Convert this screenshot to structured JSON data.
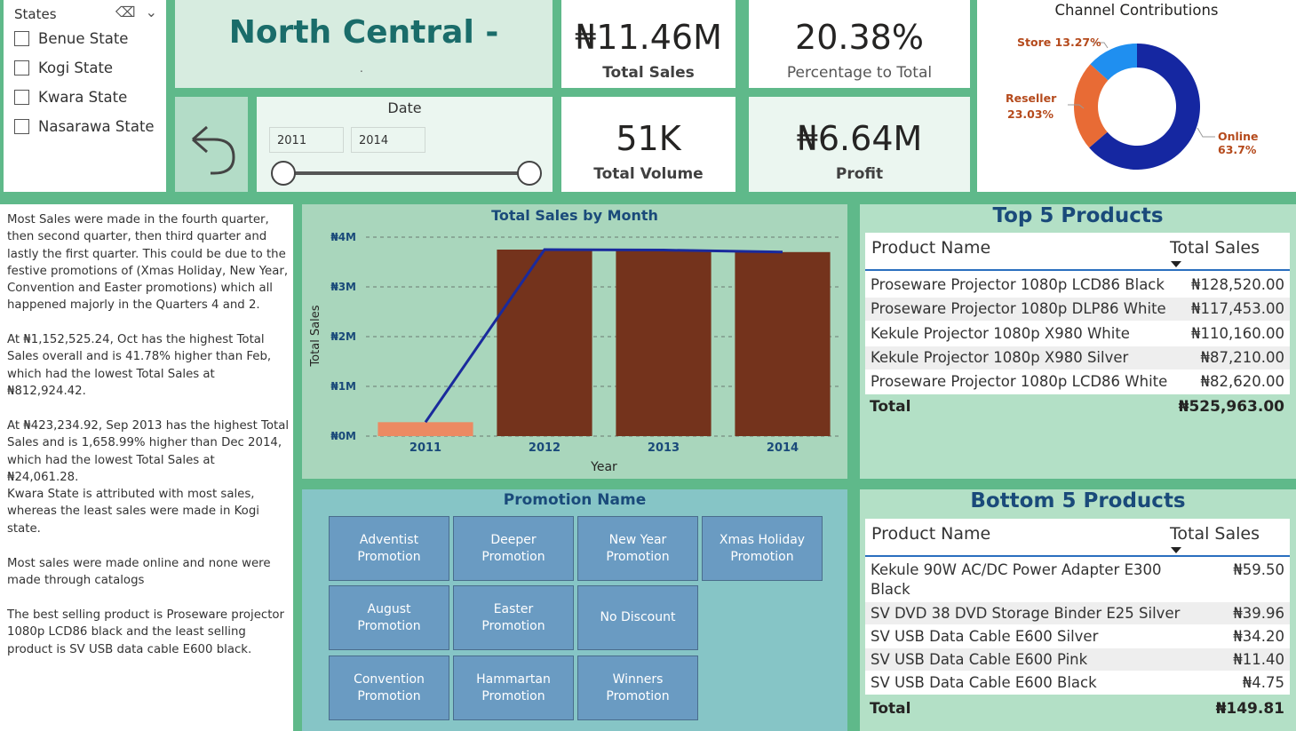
{
  "states_slicer": {
    "header": "States",
    "options": [
      "Benue State",
      "Kogi State",
      "Kwara State",
      "Nasarawa State"
    ]
  },
  "title": {
    "text": "North Central -",
    "sub": "."
  },
  "kpis": {
    "total_sales": {
      "value": "₦11.46M",
      "label": "Total Sales"
    },
    "percentage": {
      "value": "20.38%",
      "label": "Percentage to Total"
    },
    "total_volume": {
      "value": "51K",
      "label": "Total Volume"
    },
    "profit": {
      "value": "₦6.64M",
      "label": "Profit"
    }
  },
  "date_slicer": {
    "label": "Date",
    "start": "2011",
    "end": "2014",
    "range_start": 0.0,
    "range_end": 1.0
  },
  "channel_chart": {
    "title": "Channel Contributions",
    "store_label": "Store 13.27%",
    "reseller_label_1": "Reseller",
    "reseller_label_2": "23.03%",
    "online_label": "Online 63.7%"
  },
  "narrative": [
    "Most Sales were made in the fourth quarter, then second quarter, then third quarter and lastly the first quarter. This could be due to the festive promotions of (Xmas Holiday, New Year, Convention and Easter promotions) which all happened majorly in the Quarters 4 and 2.",
    "At ₦1,152,525.24, Oct has the highest Total Sales overall and is 41.78% higher than Feb, which had the lowest Total Sales at ₦812,924.42.",
    "At ₦423,234.92, Sep 2013 has the highest Total Sales and is 1,658.99% higher than Dec 2014, which had the lowest Total Sales at ₦24,061.28.",
    "Kwara State is attributed with most sales, whereas the least sales were made in Kogi state.",
    "Most sales were made online and none were made through catalogs",
    "The best selling product is Proseware projector 1080p LCD86 black and the least selling product is SV USB data cable E600 black."
  ],
  "chart_data": [
    {
      "type": "bar",
      "title": "Total Sales by Month",
      "xlabel": "Year",
      "ylabel": "Total Sales",
      "categories": [
        "2011",
        "2012",
        "2013",
        "2014"
      ],
      "values": [
        280000,
        3750000,
        3740000,
        3700000
      ],
      "line_values": [
        280000,
        3750000,
        3740000,
        3700000
      ],
      "ylim": [
        0,
        4000000
      ],
      "yticks": [
        "₦0M",
        "₦1M",
        "₦2M",
        "₦3M",
        "₦4M"
      ],
      "bar_colors": [
        "#ec8a62",
        "#74331c",
        "#74331c",
        "#74331c"
      ],
      "line_color": "#1a2a9c",
      "grid": true
    },
    {
      "type": "pie",
      "title": "Channel Contributions",
      "categories": [
        "Online",
        "Reseller",
        "Store"
      ],
      "values": [
        63.7,
        23.03,
        13.27
      ],
      "colors": [
        "#1527a1",
        "#e86b35",
        "#1f8ff0"
      ]
    }
  ],
  "promotions": {
    "title": "Promotion Name",
    "buttons": [
      "Adventist Promotion",
      "Deeper Promotion",
      "New Year Promotion",
      "Xmas Holiday Promotion",
      "August Promotion",
      "Easter Promotion",
      "No Discount",
      "Convention Promotion",
      "Hammartan Promotion",
      "Winners Promotion"
    ]
  },
  "top_products": {
    "title": "Top 5 Products",
    "col_name": "Product Name",
    "col_sales": "Total Sales",
    "rows": [
      {
        "name": "Proseware Projector 1080p LCD86 Black",
        "sales": "₦128,520.00"
      },
      {
        "name": "Proseware Projector 1080p DLP86 White",
        "sales": "₦117,453.00"
      },
      {
        "name": "Kekule Projector 1080p X980 White",
        "sales": "₦110,160.00"
      },
      {
        "name": "Kekule Projector 1080p X980 Silver",
        "sales": "₦87,210.00"
      },
      {
        "name": "Proseware Projector 1080p LCD86 White",
        "sales": "₦82,620.00"
      }
    ],
    "total_label": "Total",
    "total_value": "₦525,963.00"
  },
  "bottom_products": {
    "title": "Bottom 5 Products",
    "col_name": "Product Name",
    "col_sales": "Total Sales",
    "rows": [
      {
        "name": "Kekule 90W AC/DC Power Adapter E300",
        "name2": "Black",
        "sales": "₦59.50"
      },
      {
        "name": "SV DVD 38 DVD Storage Binder E25 Silver",
        "sales": "₦39.96"
      },
      {
        "name": "SV USB Data Cable E600 Silver",
        "sales": "₦34.20"
      },
      {
        "name": "SV USB Data Cable E600 Pink",
        "sales": "₦11.40"
      },
      {
        "name": "SV USB Data Cable E600 Black",
        "sales": "₦4.75"
      }
    ],
    "total_label": "Total",
    "total_value": "₦149.81"
  }
}
